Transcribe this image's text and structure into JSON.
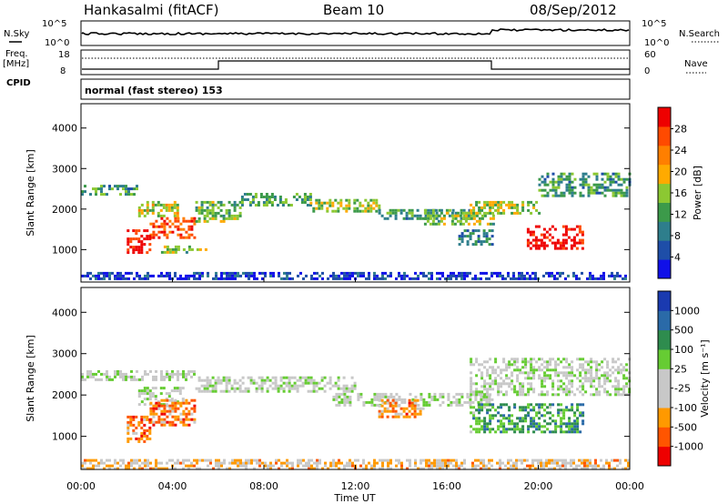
{
  "header": {
    "station": "Hankasalmi (fitACF)",
    "beam": "Beam 10",
    "date": "08/Sep/2012"
  },
  "top_panels": {
    "nsky_label": "N.Sky",
    "nsearch_label": "N.Search",
    "noise_ticks": [
      "10^5",
      "10^0"
    ],
    "freq_label": "Freq.",
    "freq_unit": "[MHz]",
    "freq_ticks": [
      "18",
      "8"
    ],
    "nave_label": "Nave",
    "nave_ticks": [
      "60",
      "0"
    ],
    "cpid_label": "CPID",
    "cpid_text": "normal (fast stereo) 153"
  },
  "colors": {
    "power_scale": [
      "#1010e8",
      "#1e4ea8",
      "#2e7e8c",
      "#3c9a4a",
      "#8cc832",
      "#ffaa00",
      "#ff7f00",
      "#ff4a00",
      "#ee0000"
    ],
    "velocity_scale": [
      "#ee0000",
      "#ff5500",
      "#ff9900",
      "#c8c8c8",
      "#c8c8c8",
      "#66cc33",
      "#2e8c4e",
      "#2a6aa8",
      "#1a3ab0"
    ],
    "ground_scatter": "#c8c8c8"
  },
  "chart_data": [
    {
      "type": "heatmap",
      "panel": "power",
      "ylabel": "Slant Range [km]",
      "y_ticks": [
        "1000",
        "2000",
        "3000",
        "4000"
      ],
      "ylim": [
        200,
        4600
      ],
      "colorbar_label": "Power [dB]",
      "colorbar_ticks": [
        "4",
        "8",
        "12",
        "16",
        "20",
        "24",
        "28"
      ],
      "bands": [
        {
          "t": [
            0,
            24
          ],
          "r": [
            250,
            450
          ],
          "level": 0.12
        },
        {
          "t": [
            0,
            2.5
          ],
          "r": [
            2350,
            2600
          ],
          "level": 0.35
        },
        {
          "t": [
            2.5,
            4.2
          ],
          "r": [
            1800,
            2200
          ],
          "level": 0.55
        },
        {
          "t": [
            3,
            5
          ],
          "r": [
            1300,
            1800
          ],
          "level": 0.85
        },
        {
          "t": [
            2,
            3
          ],
          "r": [
            900,
            1500
          ],
          "level": 0.95
        },
        {
          "t": [
            3.5,
            5.5
          ],
          "r": [
            900,
            1100
          ],
          "level": 0.45
        },
        {
          "t": [
            5,
            7
          ],
          "r": [
            1700,
            2200
          ],
          "level": 0.45
        },
        {
          "t": [
            7,
            10
          ],
          "r": [
            2100,
            2400
          ],
          "level": 0.4
        },
        {
          "t": [
            10,
            13
          ],
          "r": [
            1950,
            2250
          ],
          "level": 0.5
        },
        {
          "t": [
            13,
            17
          ],
          "r": [
            1750,
            2000
          ],
          "level": 0.35
        },
        {
          "t": [
            15,
            18
          ],
          "r": [
            1600,
            2000
          ],
          "level": 0.45
        },
        {
          "t": [
            17,
            20
          ],
          "r": [
            1900,
            2200
          ],
          "level": 0.5
        },
        {
          "t": [
            20,
            24
          ],
          "r": [
            2300,
            2900
          ],
          "level": 0.35
        },
        {
          "t": [
            19.5,
            22
          ],
          "r": [
            1000,
            1600
          ],
          "level": 0.97
        },
        {
          "t": [
            16.5,
            18
          ],
          "r": [
            1100,
            1500
          ],
          "level": 0.3
        }
      ]
    },
    {
      "type": "heatmap",
      "panel": "velocity",
      "ylabel": "Slant Range [km]",
      "y_ticks": [
        "1000",
        "2000",
        "3000",
        "4000"
      ],
      "ylim": [
        200,
        4600
      ],
      "colorbar_label": "Velocity [m s⁻¹]",
      "colorbar_ticks": [
        "-1000",
        "-500",
        "-100",
        "-25",
        "25",
        "100",
        "500",
        "1000"
      ],
      "bands": [
        {
          "t": [
            0,
            24
          ],
          "r": [
            250,
            450
          ],
          "level": 0.35
        },
        {
          "t": [
            0,
            5
          ],
          "r": [
            2350,
            2600
          ],
          "level": 0.5
        },
        {
          "t": [
            2.5,
            4.5
          ],
          "r": [
            1800,
            2200
          ],
          "level": 0.5
        },
        {
          "t": [
            3,
            5
          ],
          "r": [
            1300,
            1900
          ],
          "level": 0.22
        },
        {
          "t": [
            2,
            3
          ],
          "r": [
            900,
            1500
          ],
          "level": 0.2
        },
        {
          "t": [
            5,
            12
          ],
          "r": [
            2100,
            2450
          ],
          "level": 0.5
        },
        {
          "t": [
            11,
            18
          ],
          "r": [
            1750,
            2050
          ],
          "level": 0.5
        },
        {
          "t": [
            17,
            24
          ],
          "r": [
            2000,
            2900
          ],
          "level": 0.5
        },
        {
          "t": [
            17,
            22
          ],
          "r": [
            1100,
            1800
          ],
          "level": 0.7
        },
        {
          "t": [
            13,
            15
          ],
          "r": [
            1500,
            1900
          ],
          "level": 0.25
        }
      ]
    }
  ],
  "x_ticks": [
    "00:00",
    "04:00",
    "08:00",
    "12:00",
    "16:00",
    "20:00",
    "00:00"
  ],
  "x_label": "Time UT"
}
